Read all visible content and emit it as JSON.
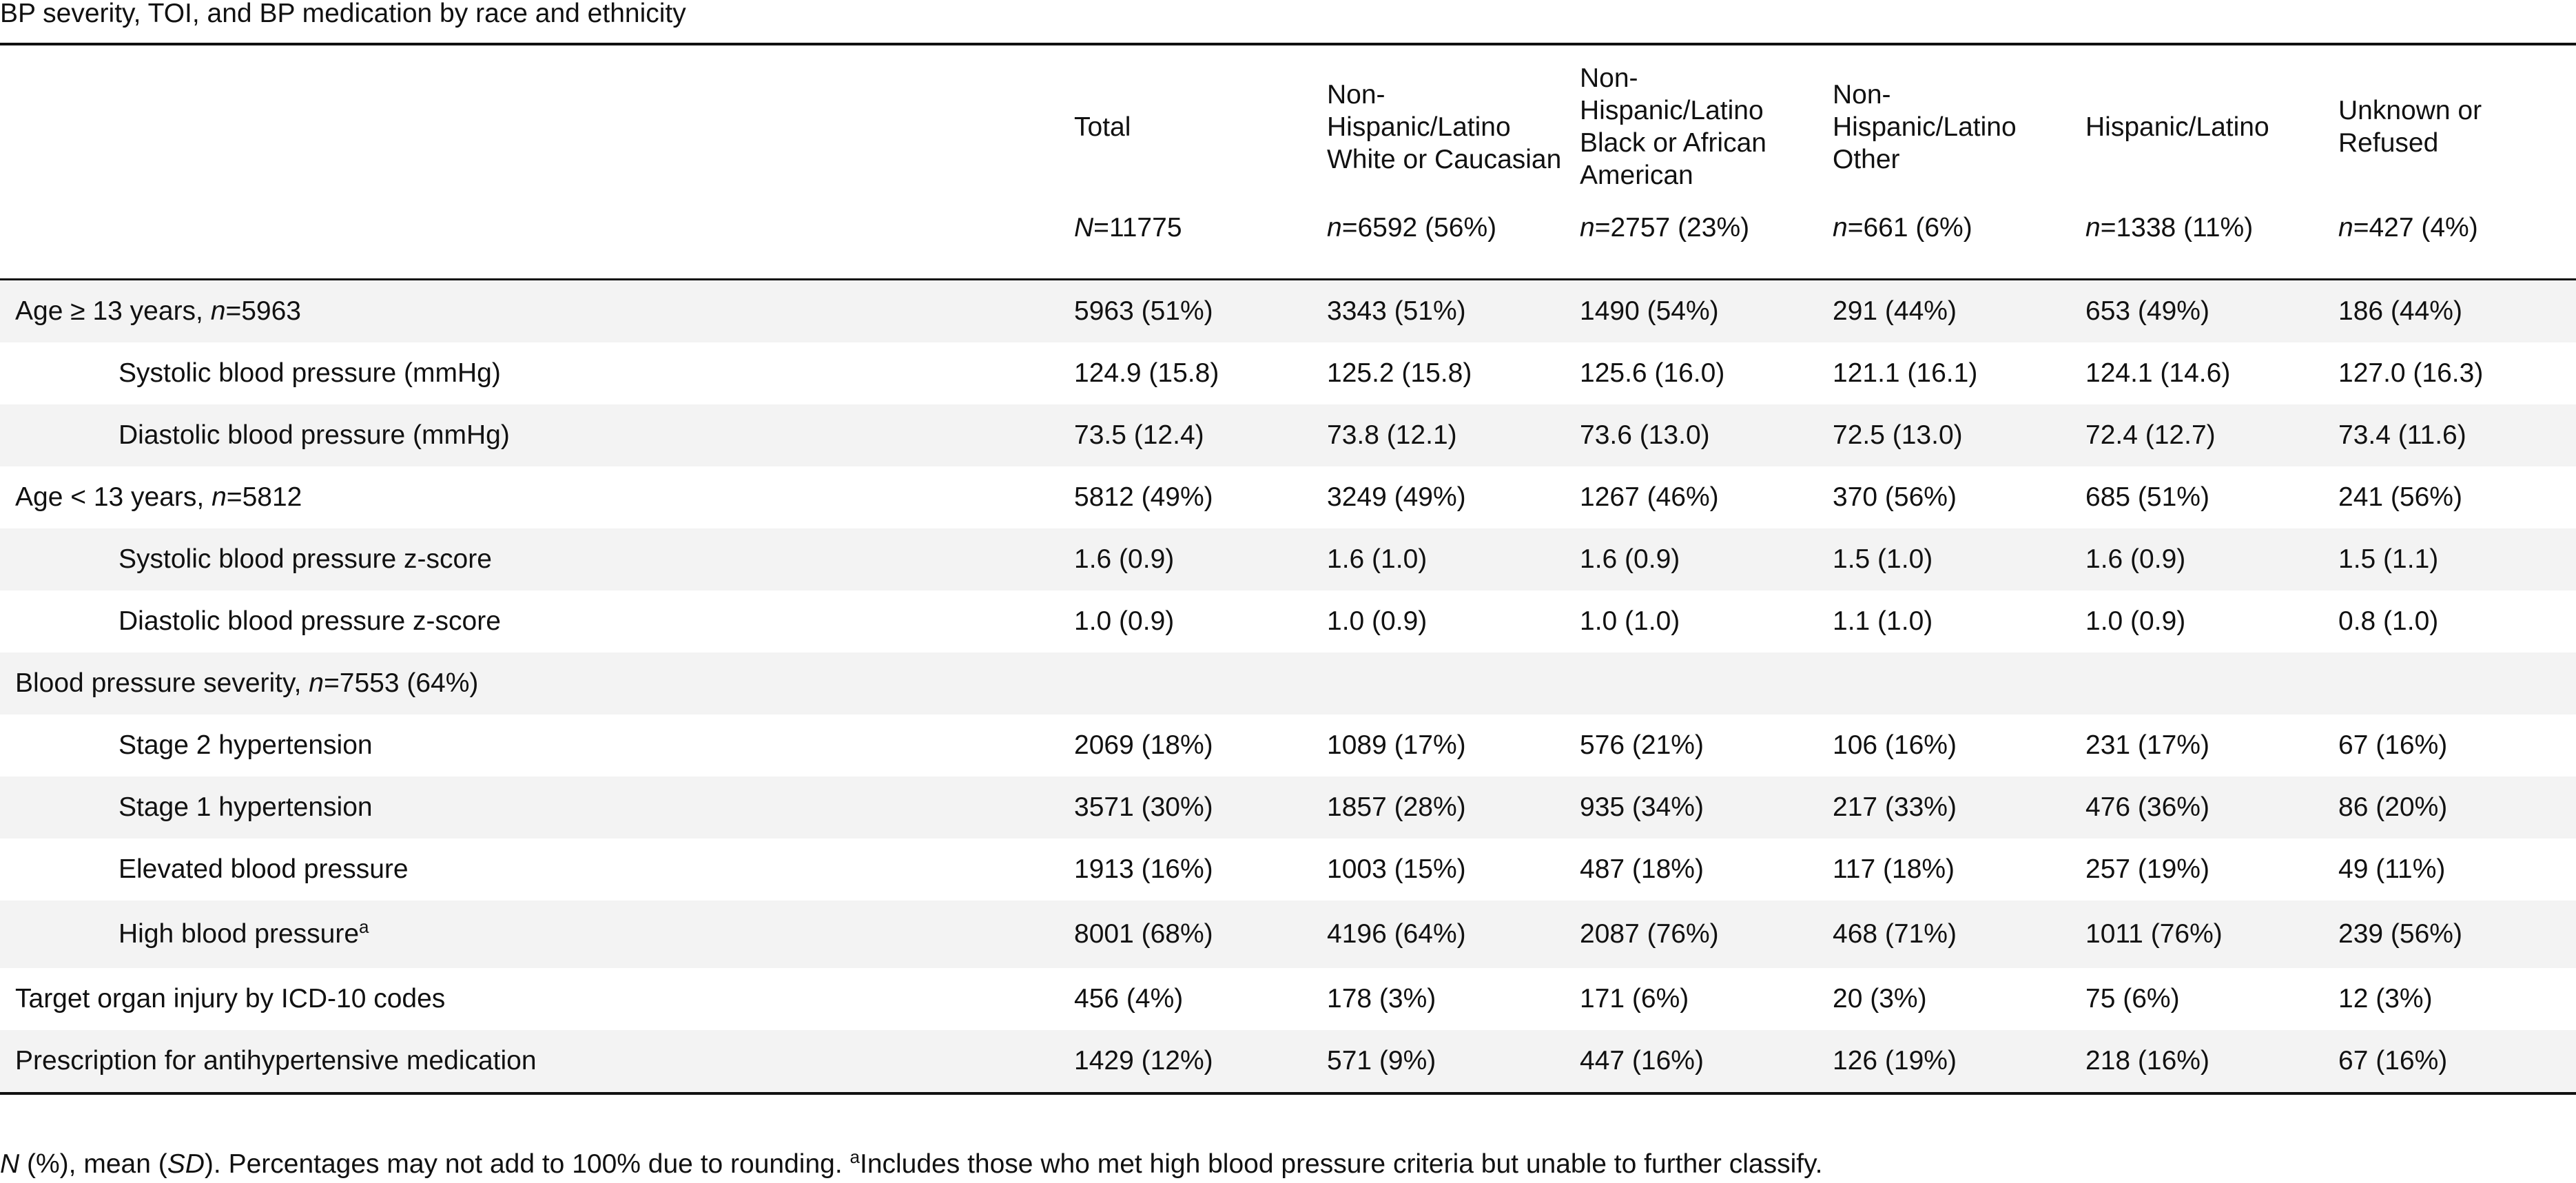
{
  "caption": "BP severity, TOI, and BP medication by race and ethnicity",
  "columns": [
    {
      "label": "",
      "count_prefix": "",
      "count_value": ""
    },
    {
      "label": "Total",
      "count_prefix": "N",
      "count_value": "=11775"
    },
    {
      "label": "Non-Hispanic/Latino White or Caucasian",
      "count_prefix": "n",
      "count_value": "=6592 (56%)"
    },
    {
      "label": "Non-Hispanic/Latino Black or African American",
      "count_prefix": "n",
      "count_value": "=2757 (23%)"
    },
    {
      "label": "Non-Hispanic/Latino Other",
      "count_prefix": "n",
      "count_value": "=661 (6%)"
    },
    {
      "label": "Hispanic/Latino",
      "count_prefix": "n",
      "count_value": "=1338 (11%)"
    },
    {
      "label": "Unknown or Refused",
      "count_prefix": "n",
      "count_value": "=427 (4%)"
    }
  ],
  "rows": [
    {
      "label": "Age ≥ 13 years, ",
      "label_italic": "n",
      "label_suffix": "=5963",
      "cells": [
        "5963 (51%)",
        "3343 (51%)",
        "1490 (54%)",
        "291 (44%)",
        "653 (49%)",
        "186 (44%)"
      ]
    },
    {
      "label": "Systolic blood pressure (mmHg)",
      "cells": [
        "124.9 (15.8)",
        "125.2 (15.8)",
        "125.6 (16.0)",
        "121.1 (16.1)",
        "124.1 (14.6)",
        "127.0 (16.3)"
      ]
    },
    {
      "label": "Diastolic blood pressure (mmHg)",
      "cells": [
        "73.5 (12.4)",
        "73.8 (12.1)",
        "73.6 (13.0)",
        "72.5 (13.0)",
        "72.4 (12.7)",
        "73.4 (11.6)"
      ]
    },
    {
      "label": "Age < 13 years, ",
      "label_italic": "n",
      "label_suffix": "=5812",
      "cells": [
        "5812 (49%)",
        "3249 (49%)",
        "1267 (46%)",
        "370 (56%)",
        "685 (51%)",
        "241 (56%)"
      ]
    },
    {
      "label": "Systolic blood pressure z-score",
      "cells": [
        "1.6 (0.9)",
        "1.6 (1.0)",
        "1.6 (0.9)",
        "1.5 (1.0)",
        "1.6 (0.9)",
        "1.5 (1.1)"
      ]
    },
    {
      "label": "Diastolic blood pressure z-score",
      "cells": [
        "1.0 (0.9)",
        "1.0 (0.9)",
        "1.0 (1.0)",
        "1.1 (1.0)",
        "1.0 (0.9)",
        "0.8 (1.0)"
      ]
    },
    {
      "label": "Blood pressure severity, ",
      "label_italic": "n",
      "label_suffix": "=7553 (64%)",
      "cells": [
        "",
        "",
        "",
        "",
        "",
        ""
      ]
    },
    {
      "label": "Stage 2 hypertension",
      "cells": [
        "2069 (18%)",
        "1089 (17%)",
        "576 (21%)",
        "106 (16%)",
        "231 (17%)",
        "67 (16%)"
      ]
    },
    {
      "label": "Stage 1 hypertension",
      "cells": [
        "3571 (30%)",
        "1857 (28%)",
        "935 (34%)",
        "217 (33%)",
        "476 (36%)",
        "86 (20%)"
      ]
    },
    {
      "label": "Elevated blood pressure",
      "cells": [
        "1913 (16%)",
        "1003 (15%)",
        "487 (18%)",
        "117 (18%)",
        "257 (19%)",
        "49 (11%)"
      ]
    },
    {
      "label": "High blood pressure",
      "label_sup": "a",
      "cells": [
        "8001 (68%)",
        "4196 (64%)",
        "2087 (76%)",
        "468 (71%)",
        "1011 (76%)",
        "239 (56%)"
      ]
    },
    {
      "label": "Target organ injury by ICD-10 codes",
      "cells": [
        "456 (4%)",
        "178 (3%)",
        "171 (6%)",
        "20 (3%)",
        "75 (6%)",
        "12 (3%)"
      ]
    },
    {
      "label": "Prescription for antihypertensive medication",
      "cells": [
        "1429 (12%)",
        "571 (9%)",
        "447 (16%)",
        "126 (19%)",
        "218 (16%)",
        "67 (16%)"
      ]
    }
  ],
  "footnote": {
    "n_italic": "N",
    "mid1": " (%), mean (",
    "sd_italic": "SD",
    "mid2": "). Percentages may not add to 100% due to rounding. ",
    "sup": "a",
    "rest": "Includes those who met high blood pressure criteria but unable to further classify."
  }
}
